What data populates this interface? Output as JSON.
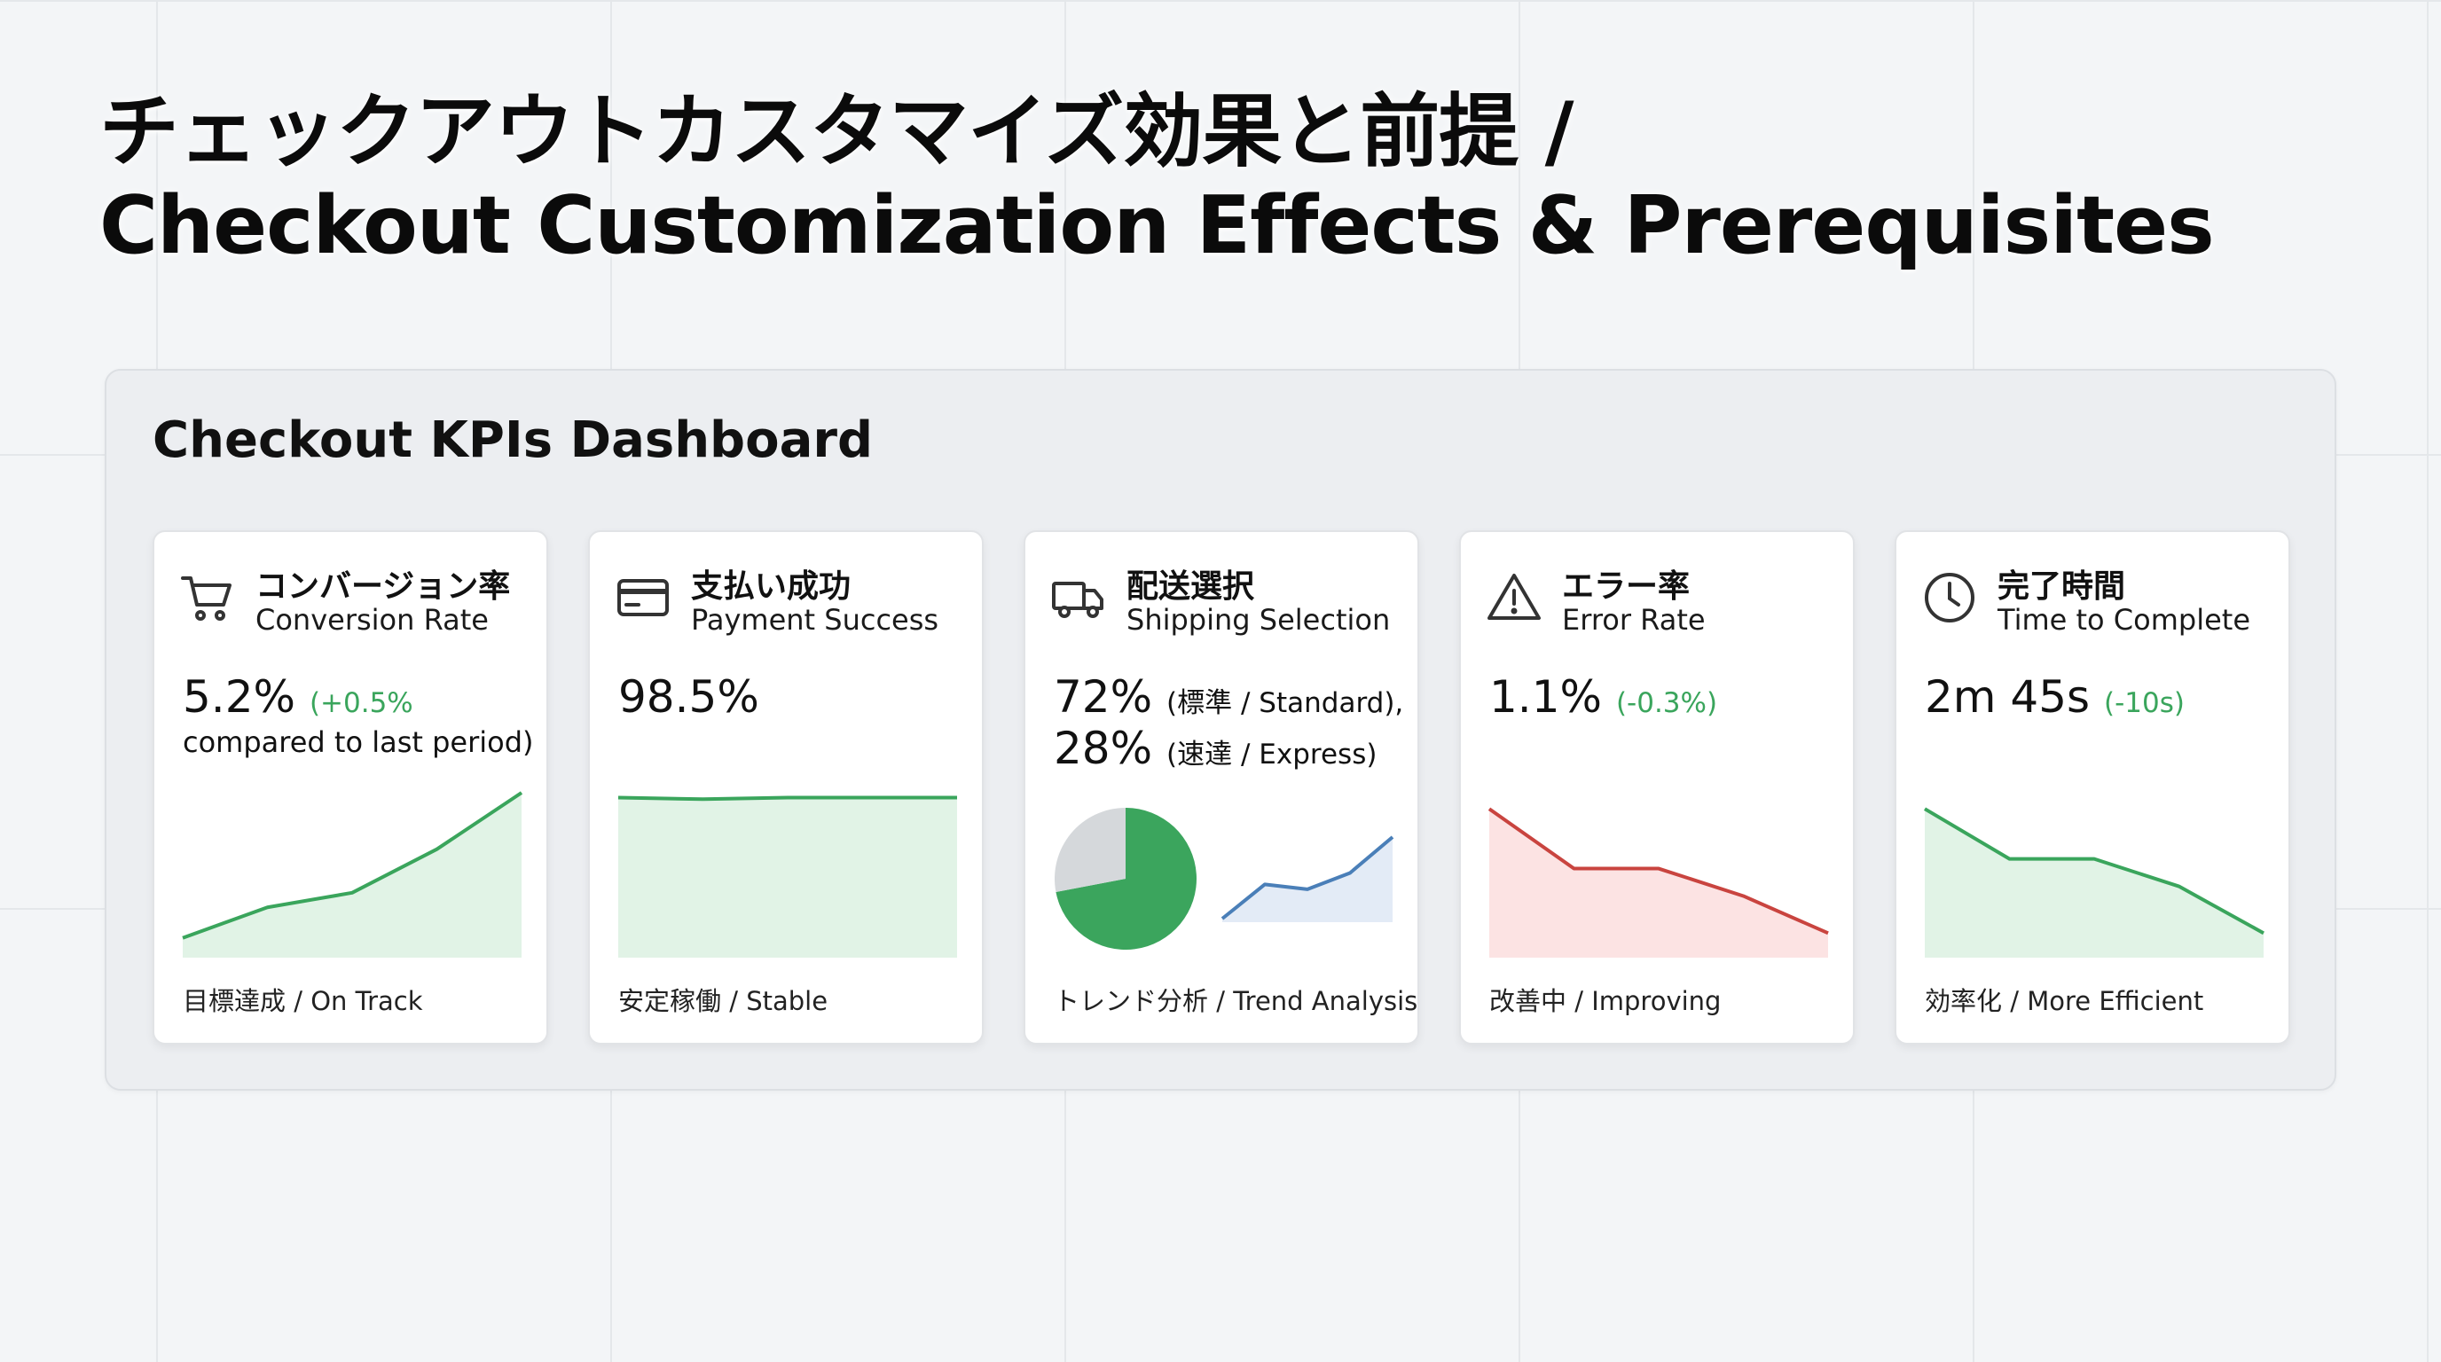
{
  "title": {
    "line1": "チェックアウトカスタマイズ効果と前提 /",
    "line2": "Checkout Customization Effects & Prerequisites"
  },
  "dashboard": {
    "title": "Checkout KPIs Dashboard",
    "cards": [
      {
        "id": "conversion",
        "icon": "cart-icon",
        "title_ja": "コンバージョン率",
        "title_en": "Conversion Rate",
        "value": "5.2%",
        "delta": "(+0.5%",
        "sub": "compared to last period)",
        "footer": "目標達成 / On Track",
        "trend_color": "#3aa55c",
        "fill_color": "#e1f3e6",
        "trend": [
          1,
          2.9,
          3.8,
          6.5,
          10
        ]
      },
      {
        "id": "payment",
        "icon": "credit-card-icon",
        "title_ja": "支払い成功",
        "title_en": "Payment Success",
        "value": "98.5%",
        "footer": "安定稼働 / Stable",
        "trend_color": "#3aa55c",
        "fill_color": "#e1f3e6",
        "trend": [
          9.7,
          9.6,
          9.7,
          9.7,
          9.7
        ]
      },
      {
        "id": "shipping",
        "icon": "truck-icon",
        "title_ja": "配送選択",
        "title_en": "Shipping Selection",
        "value_line1": "72%",
        "label_line1": "(標準 / Standard),",
        "value_line2": "28%",
        "label_line2": "(速達 / Express)",
        "footer": "トレンド分析 / Trend Analysis",
        "pie": {
          "standard_pct": 72,
          "express_pct": 28,
          "standard_color": "#3ba55d",
          "express_color": "#d5d8db"
        },
        "trend_color": "#4a7fb8",
        "fill_color": "#e3ebf6",
        "trend": [
          0,
          4.2,
          3.6,
          5.6,
          10
        ]
      },
      {
        "id": "error",
        "icon": "warning-icon",
        "title_ja": "エラー率",
        "title_en": "Error Rate",
        "value": "1.1%",
        "delta": "(-0.3%)",
        "footer": "改善中 / Improving",
        "trend_color": "#c9443f",
        "fill_color": "#fce3e3",
        "trend": [
          9,
          5.3,
          5.3,
          3.6,
          1.3
        ]
      },
      {
        "id": "time",
        "icon": "clock-icon",
        "title_ja": "完了時間",
        "title_en": "Time to Complete",
        "value": "2m 45s",
        "delta": "(-10s)",
        "footer": "効率化 / More Efficient",
        "trend_color": "#3aa55c",
        "fill_color": "#e1f3e6",
        "trend": [
          9,
          5.9,
          5.9,
          4.2,
          1.3
        ]
      }
    ]
  }
}
